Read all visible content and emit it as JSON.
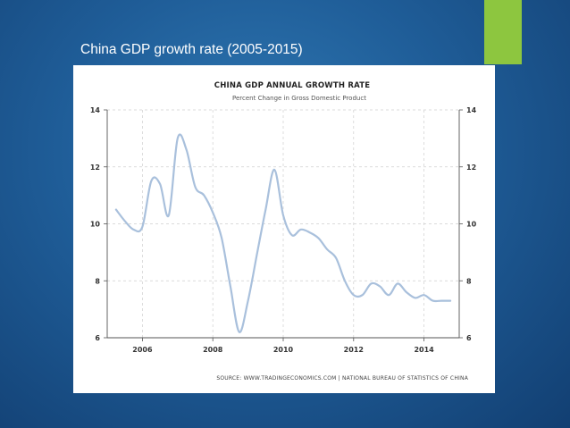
{
  "slide": {
    "title": "China GDP growth rate (2005-2015)",
    "accent_color": "#8dc63f"
  },
  "chart_data": {
    "type": "line",
    "title": "CHINA GDP ANNUAL GROWTH RATE",
    "subtitle": "Percent Change in Gross Domestic Product",
    "source": "SOURCE: WWW.TRADINGECONOMICS.COM | NATIONAL BUREAU OF STATISTICS OF CHINA",
    "xlim": [
      2005.0,
      2015.0
    ],
    "ylim": [
      6,
      14
    ],
    "xticks": [
      2006,
      2008,
      2010,
      2012,
      2014
    ],
    "yticks": [
      6,
      8,
      10,
      12,
      14
    ],
    "grid": true,
    "line_color": "#a9c0dc",
    "series": [
      {
        "x": [
          2005.25,
          2005.5,
          2005.75,
          2006.0,
          2006.25,
          2006.5,
          2006.75,
          2007.0,
          2007.25,
          2007.5,
          2007.75,
          2008.0,
          2008.25,
          2008.5,
          2008.75,
          2009.0,
          2009.25,
          2009.5,
          2009.75,
          2010.0,
          2010.25,
          2010.5,
          2010.75,
          2011.0,
          2011.25,
          2011.5,
          2011.75,
          2012.0,
          2012.25,
          2012.5,
          2012.75,
          2013.0,
          2013.25,
          2013.5,
          2013.75,
          2014.0,
          2014.25,
          2014.5,
          2014.75
        ],
        "values": [
          10.5,
          10.1,
          9.8,
          9.9,
          11.5,
          11.4,
          10.3,
          13.0,
          12.6,
          11.3,
          11.0,
          10.4,
          9.5,
          7.8,
          6.2,
          7.3,
          8.9,
          10.5,
          11.9,
          10.3,
          9.6,
          9.8,
          9.7,
          9.5,
          9.1,
          8.8,
          8.0,
          7.5,
          7.5,
          7.9,
          7.8,
          7.5,
          7.9,
          7.6,
          7.4,
          7.5,
          7.3,
          7.3,
          7.3
        ]
      }
    ]
  }
}
